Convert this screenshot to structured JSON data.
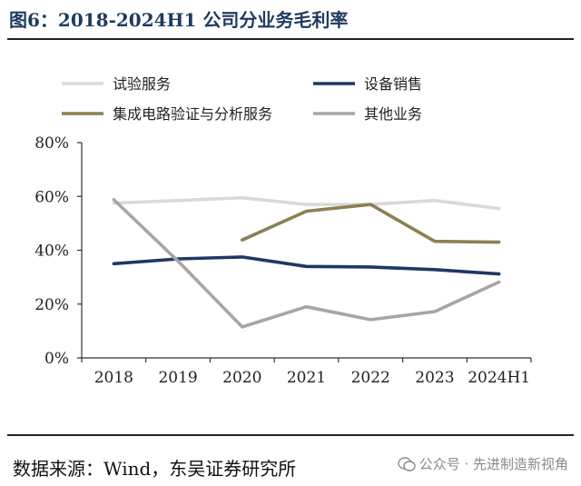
{
  "header": {
    "title": "图6：2018-2024H1 公司分业务毛利率"
  },
  "footer": {
    "source": "数据来源：Wind，东吴证券研究所",
    "watermark_text": "公众号 · 先进制造新视角"
  },
  "chart_data": {
    "type": "line",
    "categories": [
      "2018",
      "2019",
      "2020",
      "2021",
      "2022",
      "2023",
      "2024H1"
    ],
    "yticks": [
      "0%",
      "20%",
      "40%",
      "60%",
      "80%"
    ],
    "ylim": [
      0,
      80
    ],
    "ytick_values": [
      0,
      20,
      40,
      60,
      80
    ],
    "grid": false,
    "legend_placement": "top",
    "series": [
      {
        "name": "试验服务",
        "color": "#d9d9d9",
        "values": [
          57.5,
          58.5,
          59.5,
          57,
          57,
          58.5,
          55.5
        ]
      },
      {
        "name": "设备销售",
        "color": "#1f3864",
        "values": [
          35,
          36.8,
          37.5,
          34,
          33.8,
          32.8,
          31.2
        ]
      },
      {
        "name": "集成电路验证与分析服务",
        "color": "#8b8054",
        "values": [
          null,
          null,
          43.8,
          54.5,
          57,
          43.3,
          43
        ]
      },
      {
        "name": "其他业务",
        "color": "#a6a6a6",
        "values": [
          58.8,
          36,
          11.5,
          19,
          14.2,
          17.2,
          28.2
        ]
      }
    ]
  }
}
